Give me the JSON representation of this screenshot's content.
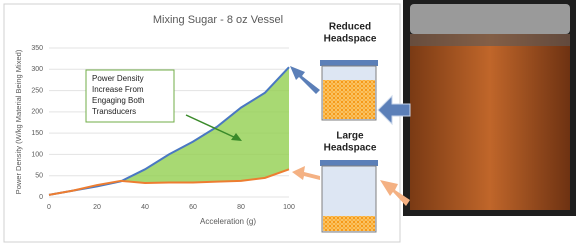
{
  "chart_data": {
    "type": "line",
    "title": "Mixing Sugar - 8 oz Vessel",
    "x_label": "Acceleration (g)",
    "y_label": "Power Density (W/kg Material Being Mixed)",
    "x": [
      0,
      10,
      20,
      30,
      40,
      50,
      60,
      70,
      80,
      90,
      100
    ],
    "series": [
      {
        "color": "#4a78c2",
        "values": [
          5,
          15,
          25,
          37,
          65,
          100,
          130,
          165,
          210,
          245,
          305
        ]
      },
      {
        "color": "#ed7d31",
        "values": [
          5,
          15,
          28,
          38,
          33,
          34,
          34,
          36,
          38,
          45,
          65
        ]
      }
    ],
    "fill_color": "#92d050",
    "xlim": [
      0,
      100
    ],
    "xticks": [
      0,
      20,
      40,
      60,
      80,
      100
    ],
    "ylim": [
      0,
      350
    ],
    "yticks": [
      0,
      50,
      100,
      150,
      200,
      250,
      300,
      350
    ],
    "grid": true,
    "annotation": [
      "Power Density",
      "Increase From",
      "Engaging Both",
      "Transducers"
    ],
    "reduced_label": [
      "Reduced",
      "Headspace"
    ],
    "large_label": [
      "Large",
      "Headspace"
    ]
  }
}
